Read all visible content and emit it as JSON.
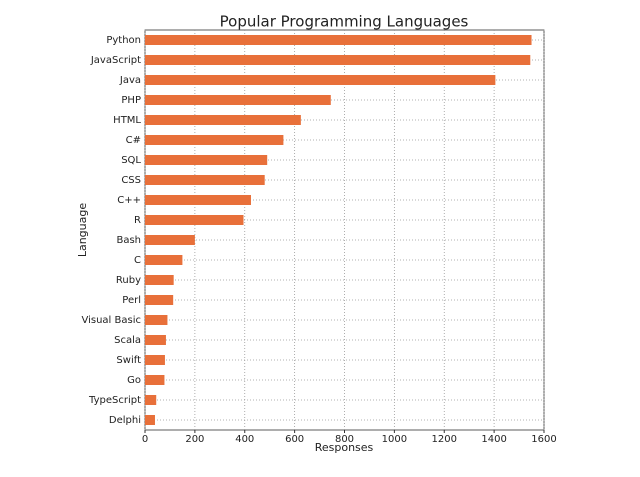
{
  "chart_data": {
    "type": "barh",
    "title": "Popular Programming Languages",
    "xlabel": "Responses",
    "ylabel": "Language",
    "categories": [
      "Python",
      "JavaScript",
      "Java",
      "PHP",
      "HTML",
      "C#",
      "SQL",
      "CSS",
      "C++",
      "R",
      "Bash",
      "C",
      "Ruby",
      "Perl",
      "Visual Basic",
      "Scala",
      "Swift",
      "Go",
      "TypeScript",
      "Delphi"
    ],
    "values": [
      1550,
      1545,
      1405,
      745,
      625,
      555,
      490,
      480,
      425,
      395,
      200,
      150,
      115,
      113,
      90,
      84,
      80,
      78,
      45,
      40
    ],
    "color": "#e8703a",
    "xlim": [
      0,
      1600
    ],
    "xticks": [
      0,
      200,
      400,
      600,
      800,
      1000,
      1200,
      1400,
      1600
    ],
    "grid": true
  }
}
